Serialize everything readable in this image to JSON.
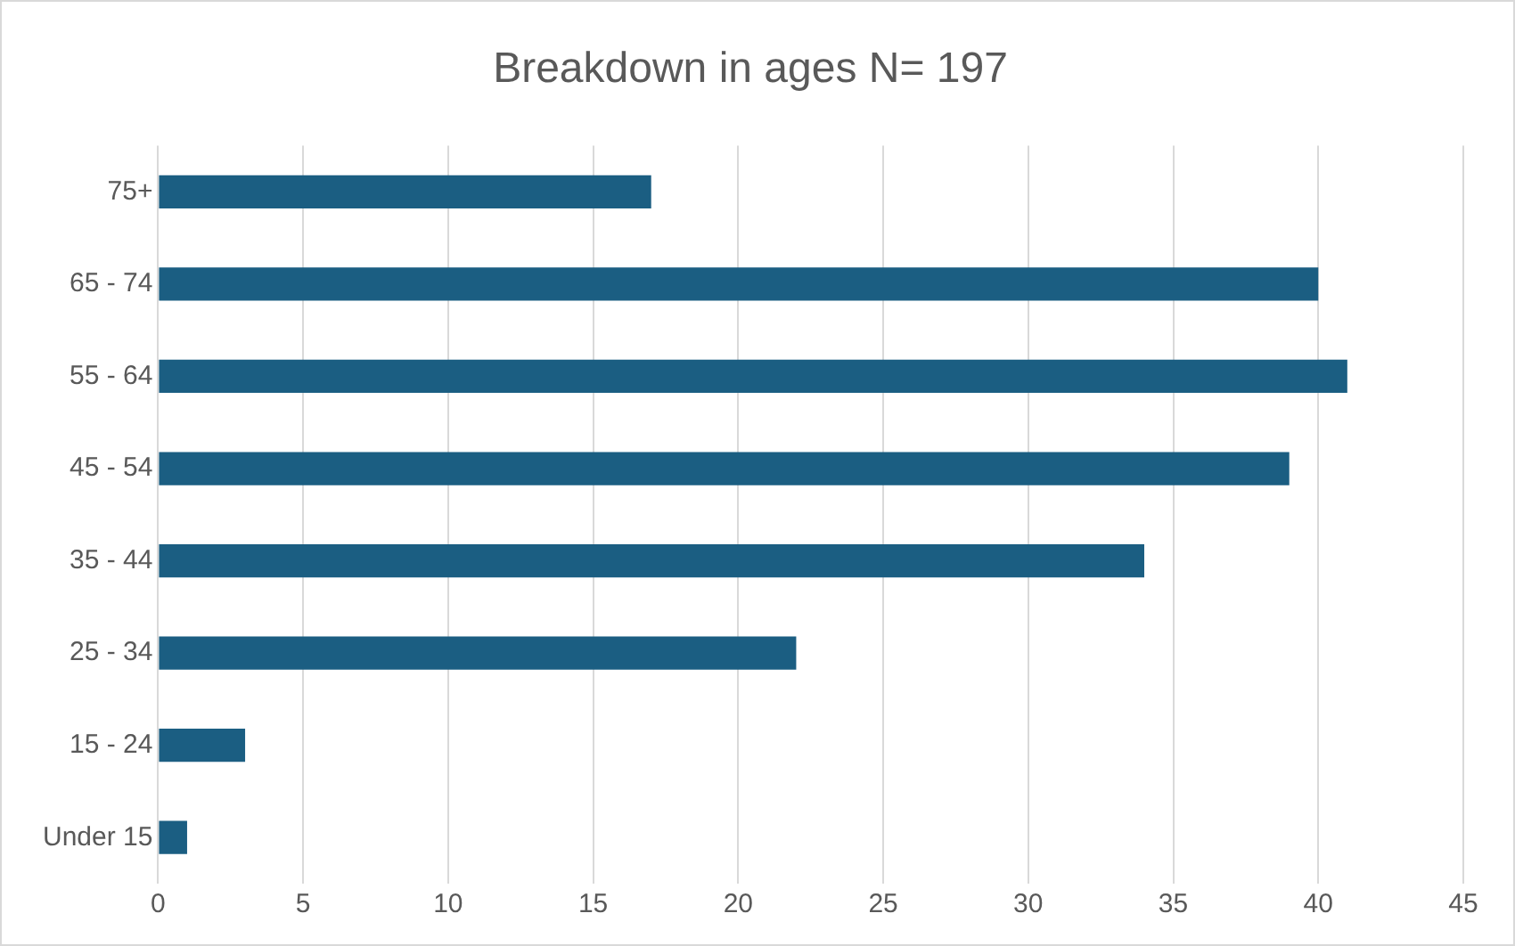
{
  "chart_data": {
    "type": "bar",
    "orientation": "horizontal",
    "title": "Breakdown in ages N= 197",
    "categories": [
      "75+",
      "65 - 74",
      "55 - 64",
      "45 - 54",
      "35 - 44",
      "25 - 34",
      "15 - 24",
      "Under 15"
    ],
    "values": [
      17,
      40,
      41,
      39,
      34,
      22,
      3,
      1
    ],
    "color": "#1b5e82",
    "xlim": [
      0,
      45
    ],
    "xticks": [
      0,
      5,
      10,
      15,
      20,
      25,
      30,
      35,
      40,
      45
    ],
    "grid": "x",
    "legend": false
  }
}
